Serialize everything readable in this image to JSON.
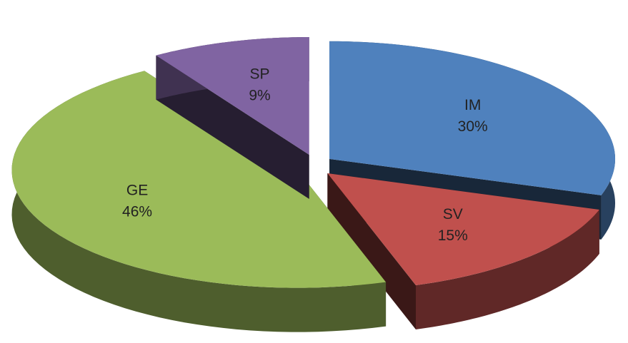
{
  "chart_data": {
    "type": "pie",
    "categories": [
      "IM",
      "SV",
      "GE",
      "SP"
    ],
    "values": [
      30,
      15,
      46,
      9
    ],
    "value_labels": [
      "30%",
      "15%",
      "46%",
      "9%"
    ],
    "colors": [
      "#4f81bd",
      "#c0504d",
      "#9bbb59",
      "#8064a2"
    ]
  }
}
